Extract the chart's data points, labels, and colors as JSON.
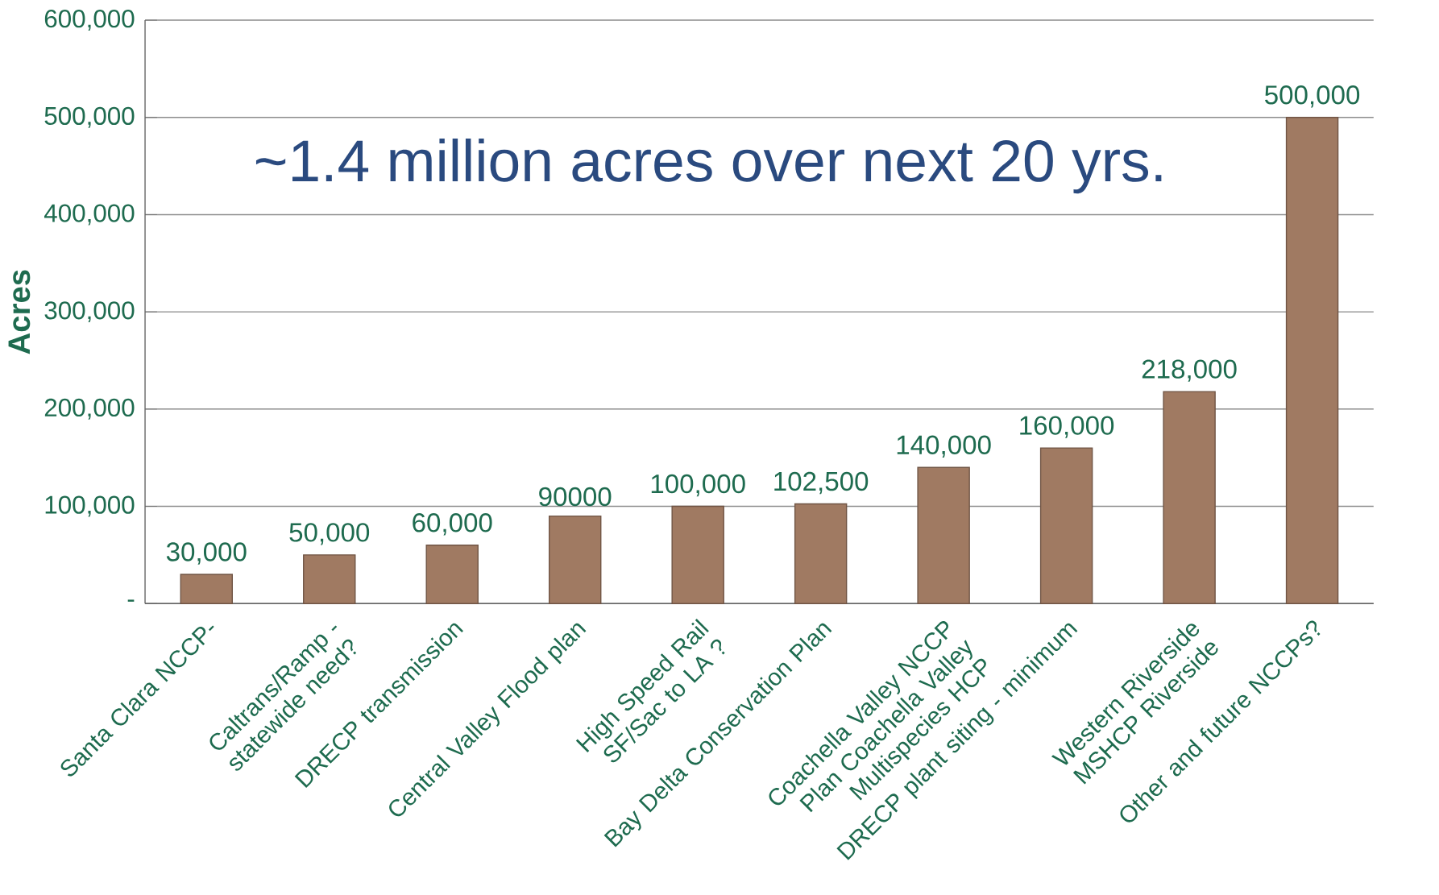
{
  "chart_data": {
    "type": "bar",
    "categories": [
      "Santa Clara NCCP-",
      "Caltrans/Ramp - statewide need?",
      "DRECP transmission",
      "Central Valley Flood plan",
      "High Speed Rail SF/Sac to LA ?",
      "Bay Delta Conservation Plan",
      "Coachella Valley NCCP Plan Coachella Valley Multispecies HCP",
      "DRECP plant siting - minimum",
      "Western Riverside MSHCP Riverside",
      "Other and future NCCPs?"
    ],
    "values": [
      30000,
      50000,
      60000,
      90000,
      100000,
      102500,
      140000,
      160000,
      218000,
      500000
    ],
    "value_labels": [
      "30,000",
      "50,000",
      "60,000",
      "90000",
      "100,000",
      "102,500",
      "140,000",
      "160,000",
      "218,000",
      "500,000"
    ],
    "color": "#a07a62",
    "ylabel": "Acres",
    "ylim": [
      0,
      600000
    ],
    "yticks": [
      {
        "value": 0,
        "label": "-"
      },
      {
        "value": 100000,
        "label": "100,000"
      },
      {
        "value": 200000,
        "label": "200,000"
      },
      {
        "value": 300000,
        "label": "300,000"
      },
      {
        "value": 400000,
        "label": "400,000"
      },
      {
        "value": 500000,
        "label": "500,000"
      },
      {
        "value": 600000,
        "label": "600,000"
      }
    ],
    "grid": "y",
    "annotations": [
      "~1.4 million acres over next 20 yrs."
    ]
  }
}
